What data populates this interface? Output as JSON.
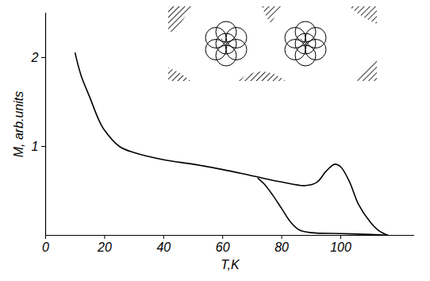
{
  "chart_data": {
    "type": "line",
    "x_label": "T,K",
    "y_label": "M, arb.units",
    "xlim": [
      0,
      125
    ],
    "xticks": [
      0,
      20,
      40,
      60,
      80,
      100
    ],
    "ylim": [
      0,
      2.5
    ],
    "yticks": [
      1,
      2
    ],
    "grid": false,
    "color": "#000000",
    "series": [
      {
        "color": "#000000",
        "x": [
          10,
          12,
          15,
          18,
          20,
          25,
          30,
          40,
          50,
          60,
          70,
          80,
          88,
          92,
          95,
          98,
          100,
          103,
          106,
          110,
          113,
          116
        ],
        "values": [
          2.05,
          1.8,
          1.55,
          1.3,
          1.18,
          1.0,
          0.93,
          0.85,
          0.8,
          0.74,
          0.67,
          0.6,
          0.56,
          0.6,
          0.72,
          0.8,
          0.77,
          0.6,
          0.35,
          0.15,
          0.05,
          0.0
        ]
      },
      {
        "color": "#000000",
        "x": [
          72,
          74,
          77,
          80,
          83,
          86,
          90,
          100,
          110,
          116
        ],
        "values": [
          0.64,
          0.58,
          0.45,
          0.3,
          0.15,
          0.06,
          0.03,
          0.02,
          0.01,
          0.0
        ]
      }
    ]
  }
}
